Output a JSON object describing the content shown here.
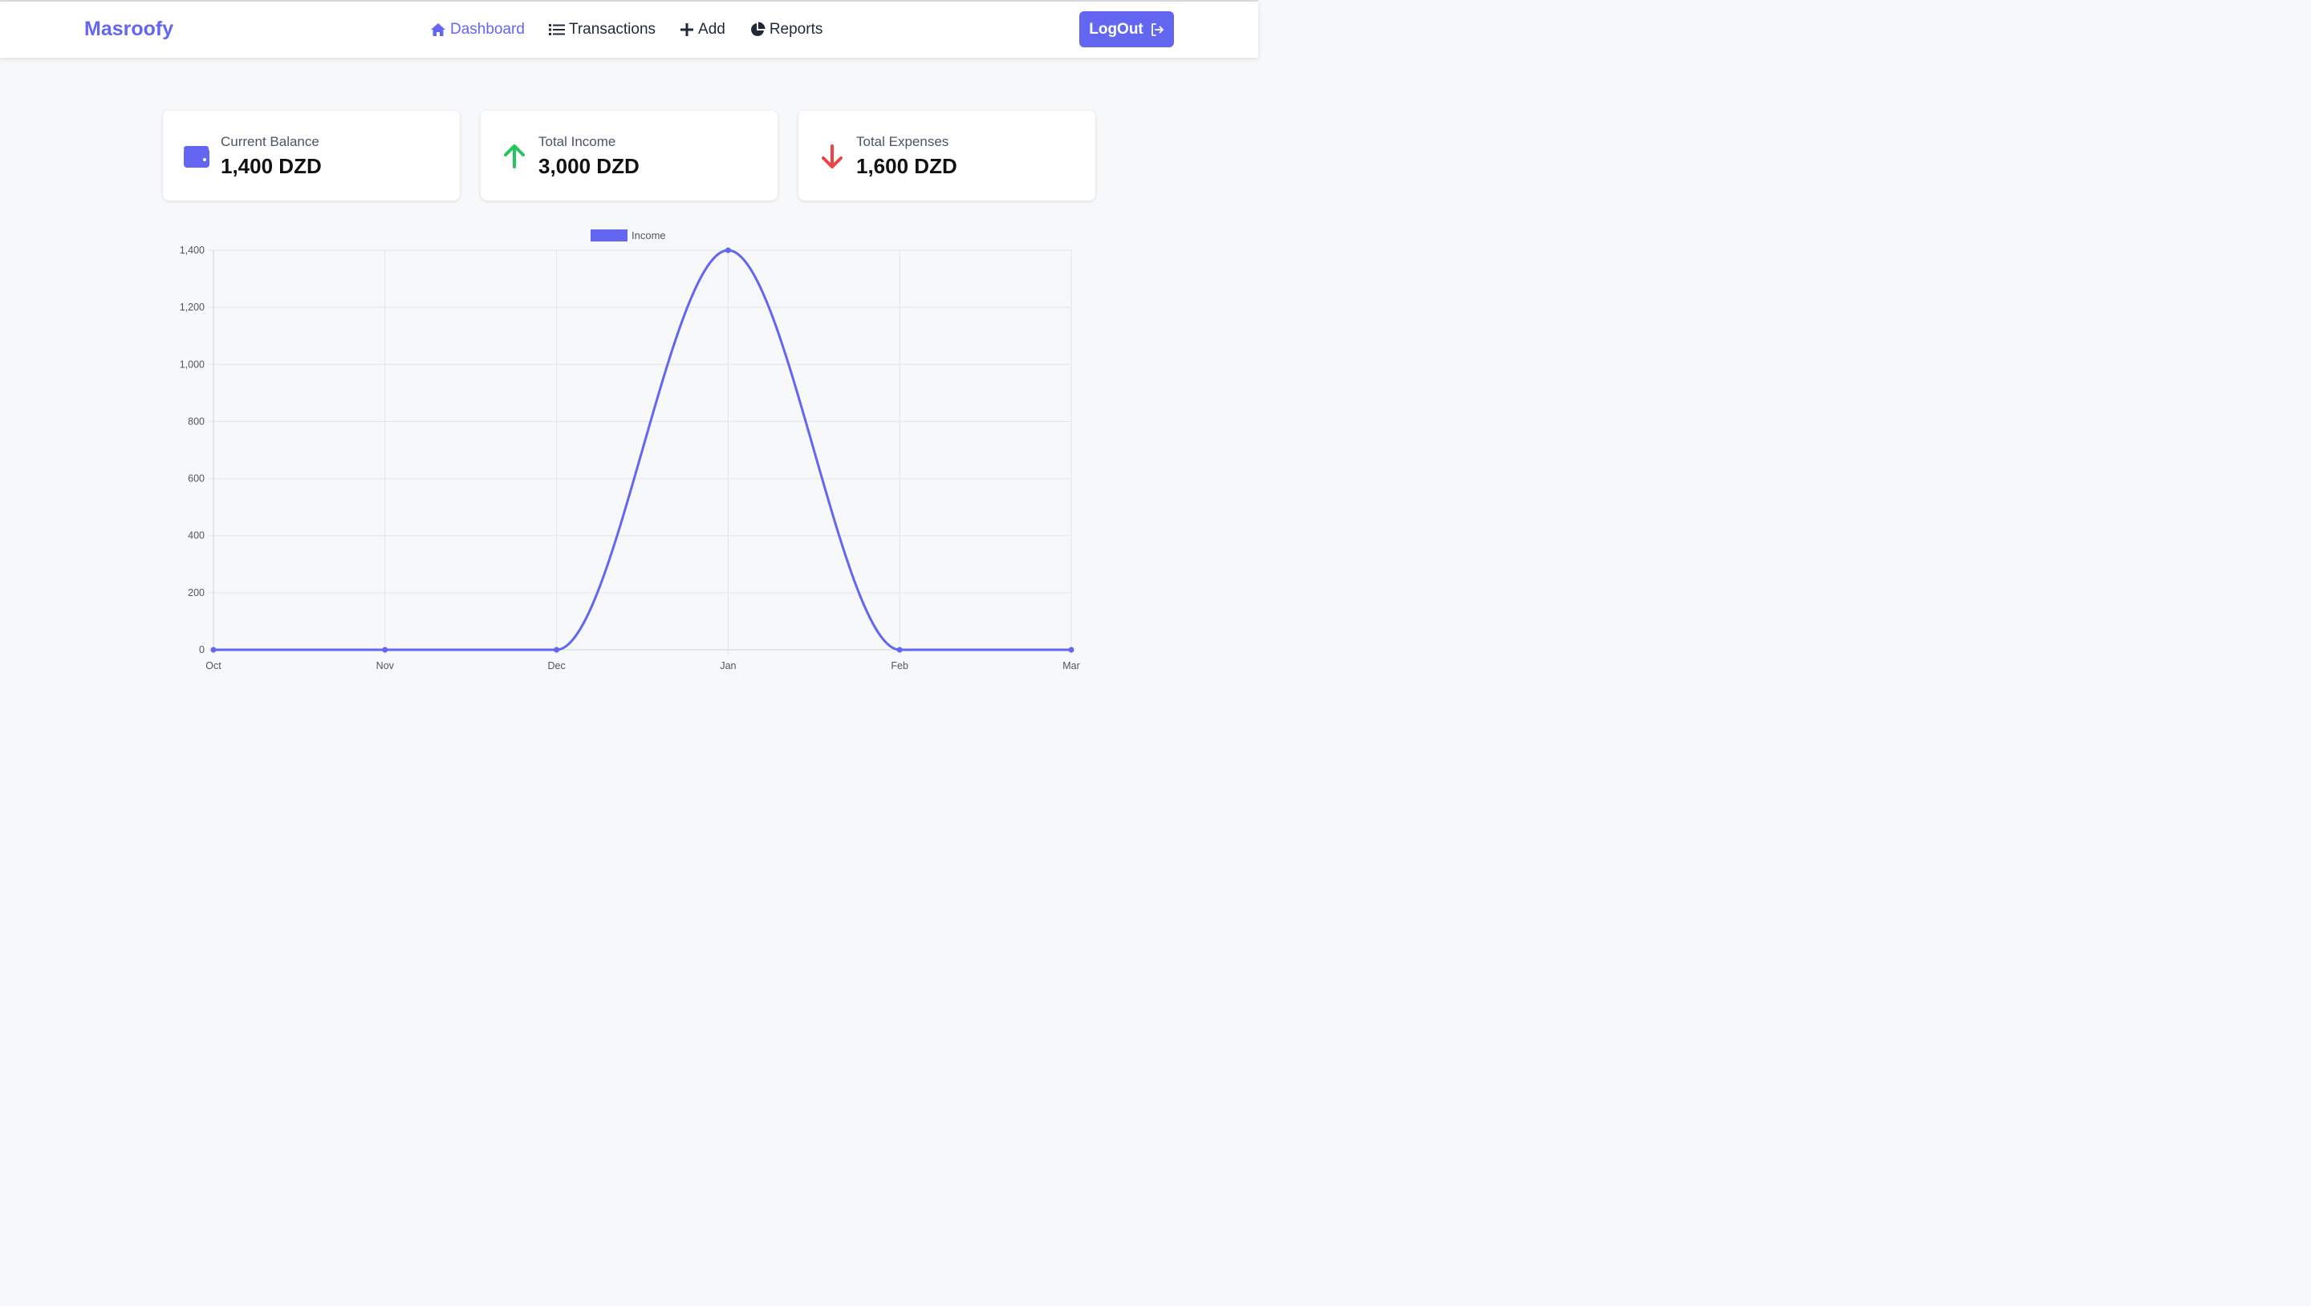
{
  "app": {
    "brand": "Masroofy"
  },
  "nav": {
    "items": [
      {
        "label": "Dashboard",
        "icon": "home-icon",
        "active": true
      },
      {
        "label": "Transactions",
        "icon": "list-icon",
        "active": false
      },
      {
        "label": "Add",
        "icon": "plus-icon",
        "active": false
      },
      {
        "label": "Reports",
        "icon": "pie-chart-icon",
        "active": false
      }
    ],
    "logout_label": "LogOut"
  },
  "colors": {
    "accent": "#6366f1",
    "income": "#22c55e",
    "expense": "#ef4444"
  },
  "cards": [
    {
      "label": "Current Balance",
      "value": "1,400 DZD",
      "icon": "wallet-icon"
    },
    {
      "label": "Total Income",
      "value": "3,000 DZD",
      "icon": "arrow-up-icon"
    },
    {
      "label": "Total Expenses",
      "value": "1,600 DZD",
      "icon": "arrow-down-icon"
    }
  ],
  "chart_data": {
    "type": "line",
    "categories": [
      "Oct",
      "Nov",
      "Dec",
      "Jan",
      "Feb",
      "Mar"
    ],
    "series": [
      {
        "name": "Income",
        "values": [
          0,
          0,
          0,
          1400,
          0,
          0
        ]
      }
    ],
    "ylim": [
      0,
      1400
    ],
    "yticks": [
      0,
      200,
      400,
      600,
      800,
      1000,
      1200,
      1400
    ],
    "ytick_labels": [
      "0",
      "200",
      "400",
      "600",
      "800",
      "1,000",
      "1,200",
      "1,400"
    ],
    "legend": "top-center",
    "grid": true,
    "title": "",
    "xlabel": "",
    "ylabel": ""
  }
}
